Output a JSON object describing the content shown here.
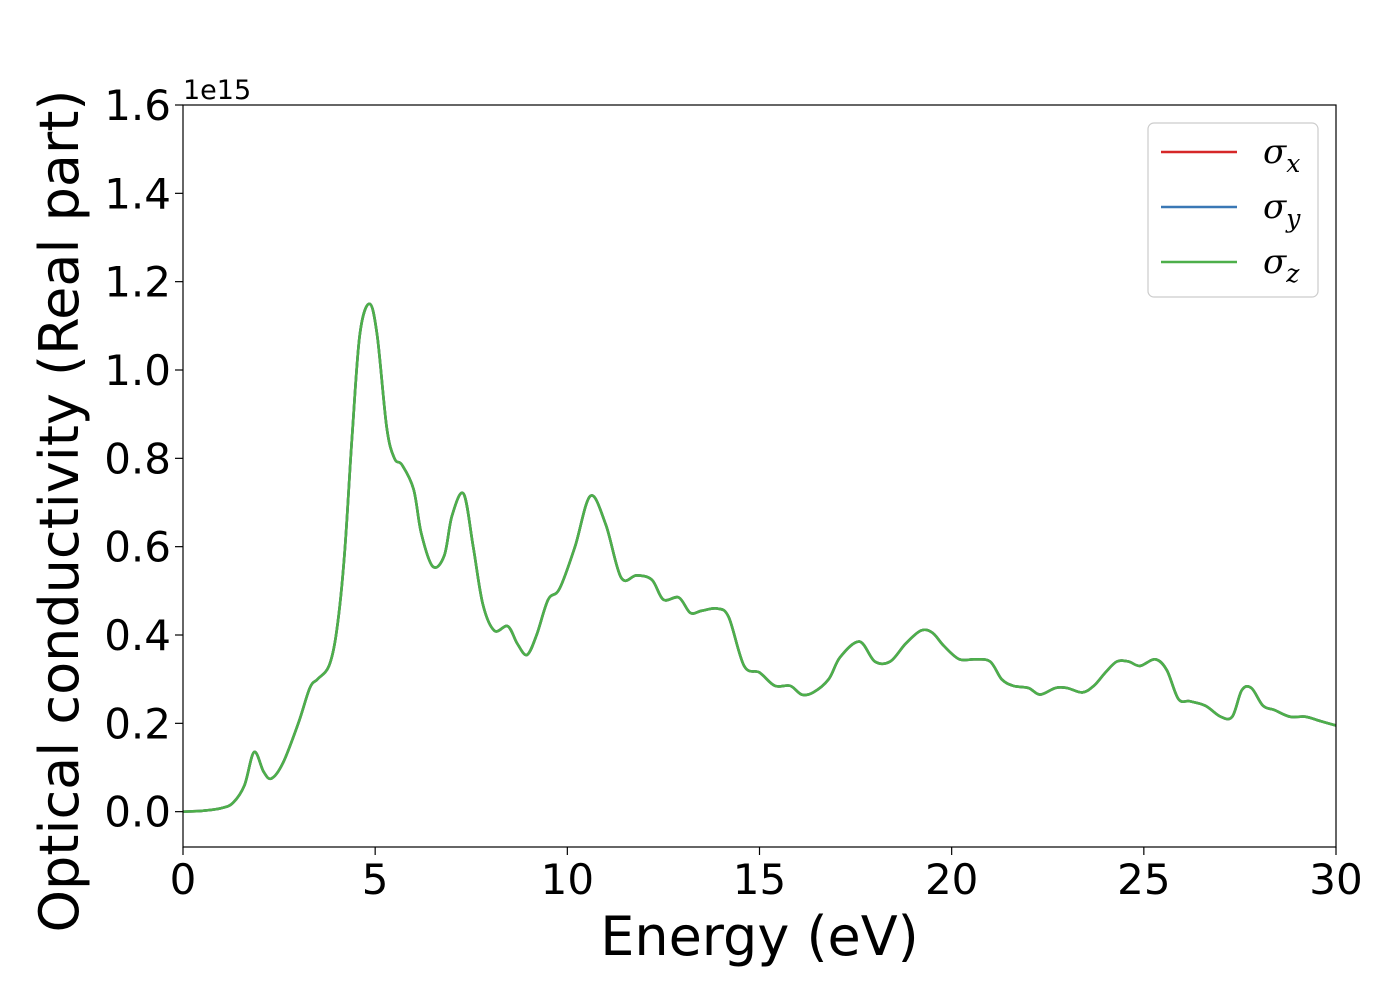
{
  "chart_data": {
    "type": "line",
    "xlabel": "Energy (eV)",
    "ylabel": "Optical conductivity (Real part)",
    "y_offset_label": "1e15",
    "xlim": [
      0,
      30
    ],
    "ylim": [
      -0.08,
      1.6
    ],
    "x_ticks": [
      0,
      5,
      10,
      15,
      20,
      25,
      30
    ],
    "x_tick_labels": [
      "0",
      "5",
      "10",
      "15",
      "20",
      "25",
      "30"
    ],
    "y_ticks": [
      0.0,
      0.2,
      0.4,
      0.6,
      0.8,
      1.0,
      1.2,
      1.4,
      1.6
    ],
    "y_tick_labels": [
      "0.0",
      "0.2",
      "0.4",
      "0.6",
      "0.8",
      "1.0",
      "1.2",
      "1.4",
      "1.6"
    ],
    "grid": false,
    "legend_position": "top-right",
    "series": [
      {
        "name": "σ",
        "subscript": "x",
        "color": "#d62728"
      },
      {
        "name": "σ",
        "subscript": "y",
        "color": "#3a78b5"
      },
      {
        "name": "σ",
        "subscript": "z",
        "color": "#4daf4a"
      }
    ],
    "x": [
      0,
      0.5,
      1.0,
      1.3,
      1.6,
      1.85,
      2.1,
      2.3,
      2.6,
      3.0,
      3.3,
      3.5,
      3.8,
      4.0,
      4.2,
      4.4,
      4.6,
      4.85,
      5.05,
      5.3,
      5.5,
      5.7,
      6.0,
      6.2,
      6.5,
      6.8,
      7.0,
      7.3,
      7.55,
      7.8,
      8.1,
      8.45,
      8.7,
      8.95,
      9.2,
      9.5,
      9.8,
      10.2,
      10.6,
      11.0,
      11.4,
      11.8,
      12.2,
      12.5,
      12.9,
      13.2,
      13.5,
      13.9,
      14.2,
      14.6,
      15.0,
      15.4,
      15.8,
      16.1,
      16.4,
      16.8,
      17.1,
      17.6,
      18.0,
      18.4,
      18.8,
      19.2,
      19.5,
      19.8,
      20.2,
      20.6,
      21.0,
      21.3,
      21.6,
      22.0,
      22.3,
      22.7,
      23.0,
      23.4,
      23.7,
      24.0,
      24.3,
      24.6,
      24.9,
      25.3,
      25.6,
      25.9,
      26.2,
      26.6,
      27.0,
      27.3,
      27.55,
      27.8,
      28.1,
      28.4,
      28.8,
      29.2,
      29.6,
      30.0
    ],
    "y": [
      0.0,
      0.002,
      0.008,
      0.02,
      0.06,
      0.135,
      0.09,
      0.075,
      0.11,
      0.2,
      0.28,
      0.3,
      0.33,
      0.41,
      0.58,
      0.85,
      1.08,
      1.15,
      1.08,
      0.87,
      0.8,
      0.785,
      0.73,
      0.63,
      0.555,
      0.58,
      0.67,
      0.72,
      0.6,
      0.47,
      0.41,
      0.42,
      0.38,
      0.355,
      0.4,
      0.48,
      0.505,
      0.6,
      0.715,
      0.65,
      0.53,
      0.535,
      0.525,
      0.48,
      0.485,
      0.45,
      0.455,
      0.46,
      0.44,
      0.33,
      0.315,
      0.285,
      0.285,
      0.265,
      0.27,
      0.3,
      0.35,
      0.385,
      0.34,
      0.34,
      0.38,
      0.41,
      0.405,
      0.375,
      0.345,
      0.345,
      0.34,
      0.3,
      0.285,
      0.28,
      0.265,
      0.28,
      0.28,
      0.27,
      0.285,
      0.315,
      0.34,
      0.34,
      0.33,
      0.345,
      0.32,
      0.255,
      0.25,
      0.24,
      0.215,
      0.215,
      0.275,
      0.28,
      0.24,
      0.23,
      0.215,
      0.215,
      0.205,
      0.195
    ]
  }
}
